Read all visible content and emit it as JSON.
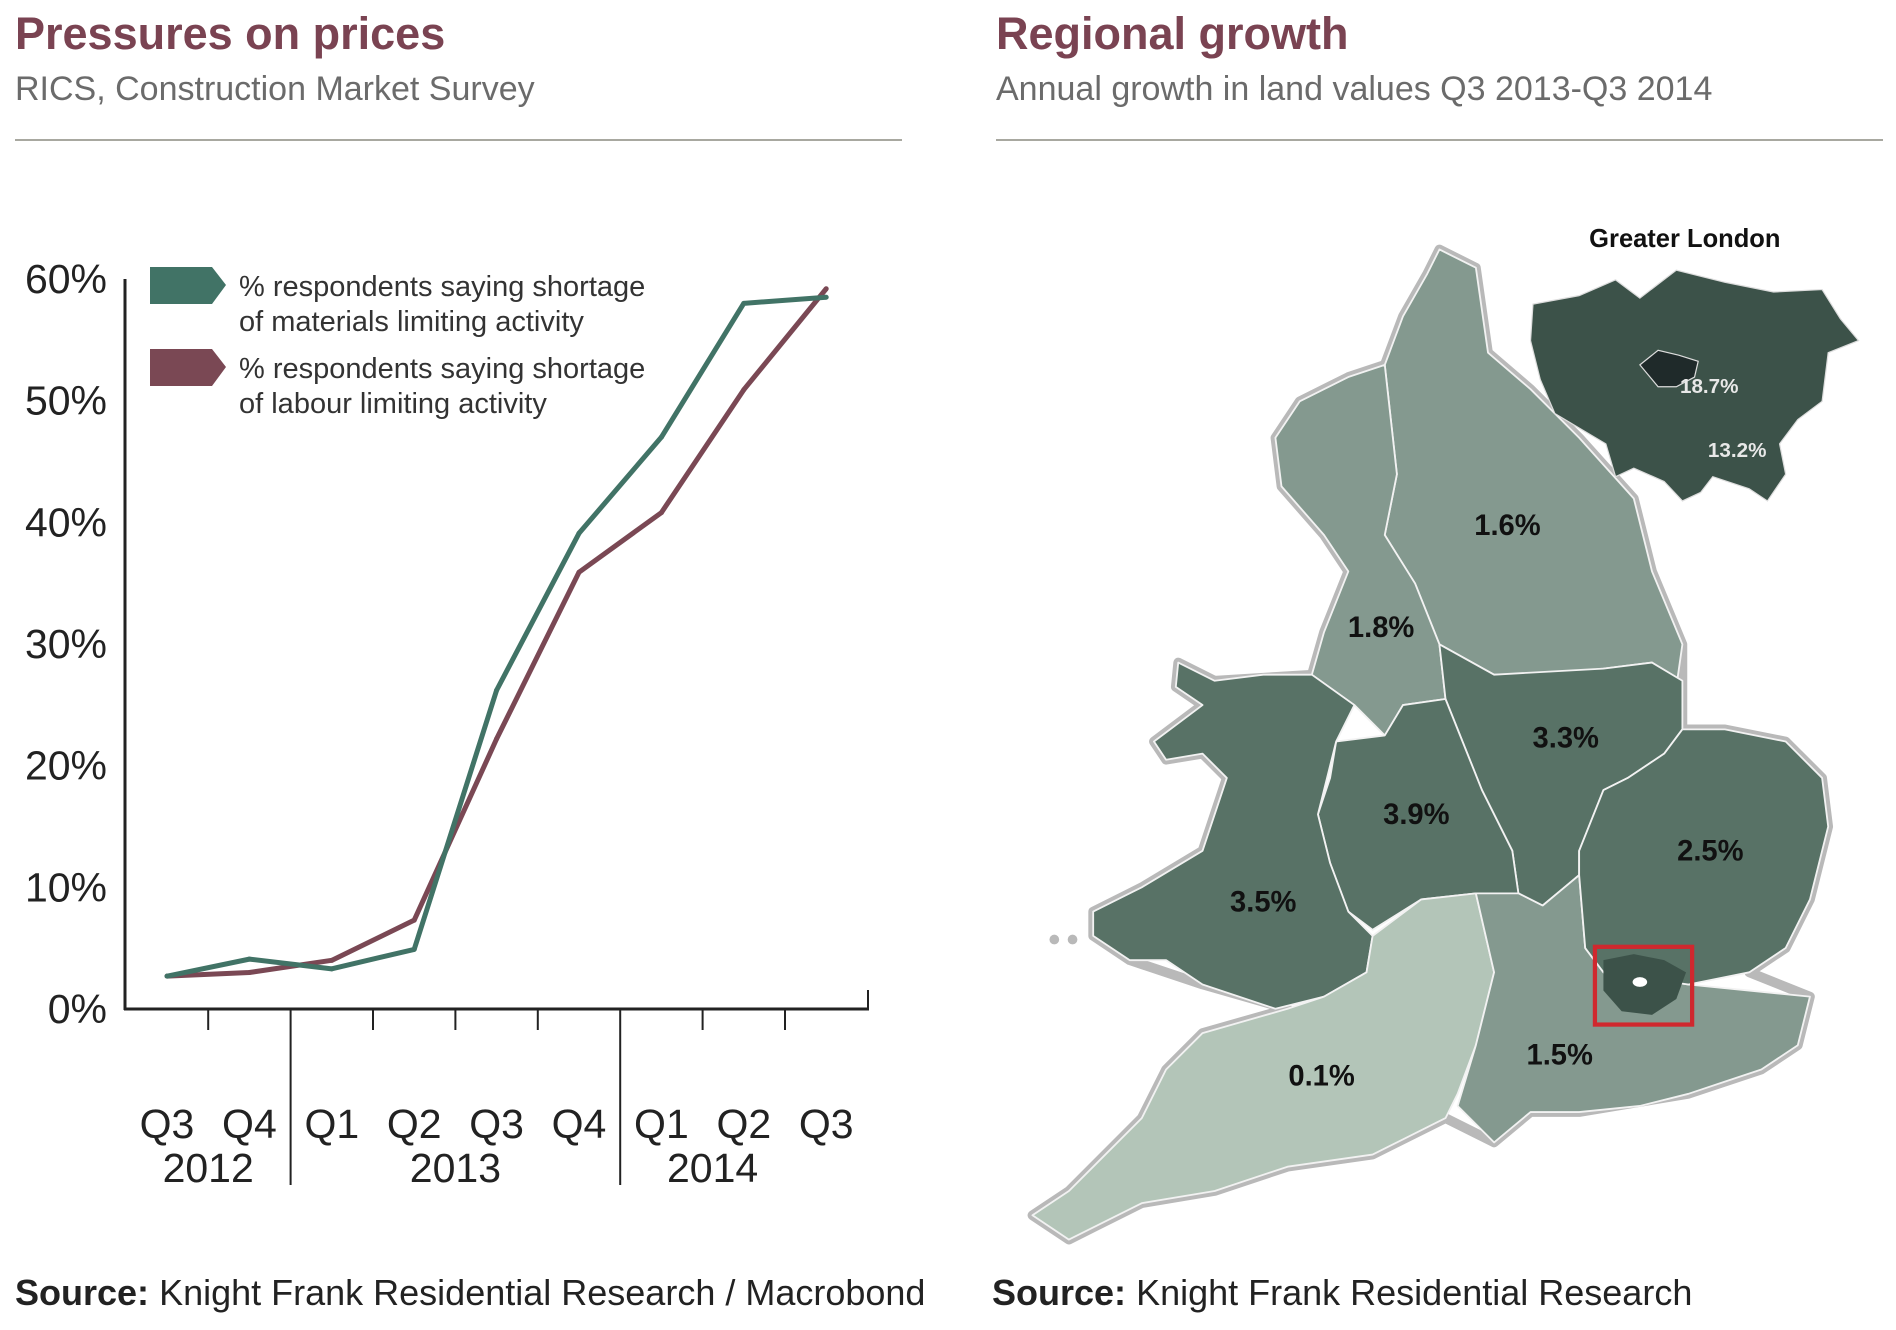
{
  "left_panel": {
    "title": "Pressures on prices",
    "subtitle": "RICS, Construction Market Survey",
    "source_label": "Source:",
    "source_text": "Knight Frank Residential Research / Macrobond"
  },
  "right_panel": {
    "title": "Regional growth",
    "subtitle": "Annual growth in land values Q3 2013-Q3 2014",
    "source_label": "Source:",
    "source_text": "Knight Frank Residential Research",
    "map": {
      "inset_title": "Greater London",
      "inset_inner_value": "18.7%",
      "inset_outer_value": "13.2%",
      "regions": {
        "north_east": "1.6%",
        "north_west": "1.8%",
        "east_midlands": "3.3%",
        "west_midlands": "3.9%",
        "wales": "3.5%",
        "east": "2.5%",
        "south_east": "1.5%",
        "south_west": "0.1%"
      },
      "colors": {
        "light": "#84998f",
        "dark": "#587266",
        "lightest": "#b3c5b8",
        "london": "#3c5249",
        "central_london": "#1f2a2a",
        "highlight_box": "#d0282e"
      }
    }
  },
  "chart_data": {
    "type": "line",
    "categories": [
      "Q3 2012",
      "Q4 2012",
      "Q1 2013",
      "Q2 2013",
      "Q3 2013",
      "Q4 2013",
      "Q1 2014",
      "Q2 2014",
      "Q3 2014"
    ],
    "quarter_labels": [
      "Q3",
      "Q4",
      "Q1",
      "Q2",
      "Q3",
      "Q4",
      "Q1",
      "Q2",
      "Q3"
    ],
    "year_labels": [
      "2012",
      "2013",
      "2014"
    ],
    "y_ticks": [
      "0%",
      "10%",
      "20%",
      "30%",
      "40%",
      "50%",
      "60%"
    ],
    "ylim": [
      0,
      60
    ],
    "grid": false,
    "legend_position": "top-left",
    "series": [
      {
        "name": "% respondents saying shortage of materials limiting activity",
        "name_line1": "% respondents saying shortage",
        "name_line2": "of materials limiting activity",
        "color": "#417366",
        "values": [
          2.7,
          4.1,
          3.3,
          4.9,
          26.2,
          39.1,
          47.0,
          58.0,
          58.5
        ]
      },
      {
        "name": "% respondents saying shortage of labour limiting activity",
        "name_line1": "% respondents saying shortage",
        "name_line2": "of labour limiting activity",
        "color": "#7a4854",
        "values": [
          2.7,
          3.0,
          4.0,
          7.3,
          22.2,
          35.9,
          40.8,
          50.9,
          59.2
        ]
      }
    ]
  }
}
